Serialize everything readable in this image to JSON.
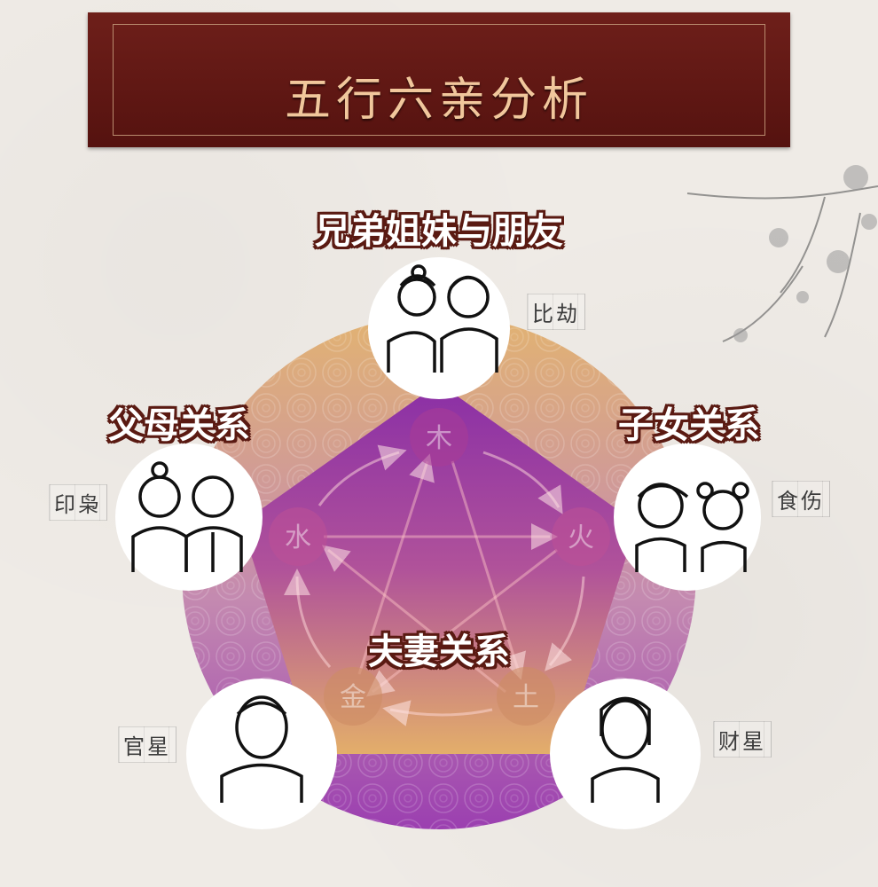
{
  "title": "五行六亲分析",
  "headings": {
    "siblings": "兄弟姐妹与朋友",
    "parents": "父母关系",
    "children": "子女关系",
    "spouse": "夫妻关系"
  },
  "tags": {
    "bijie": "比劫",
    "yinxiao": "印枭",
    "shishang": "食伤",
    "guanxing": "官星",
    "caixing": "财星"
  },
  "elements": {
    "wood": "木",
    "fire": "火",
    "earth": "土",
    "metal": "金",
    "water": "水"
  },
  "colors": {
    "banner": "#6e1f1a",
    "ring_gold": "#e2b372",
    "ring_purple": "#9b3fb0",
    "pentagon_top": "#8a2fa6",
    "pentagon_bottom": "#e3ae6a"
  }
}
